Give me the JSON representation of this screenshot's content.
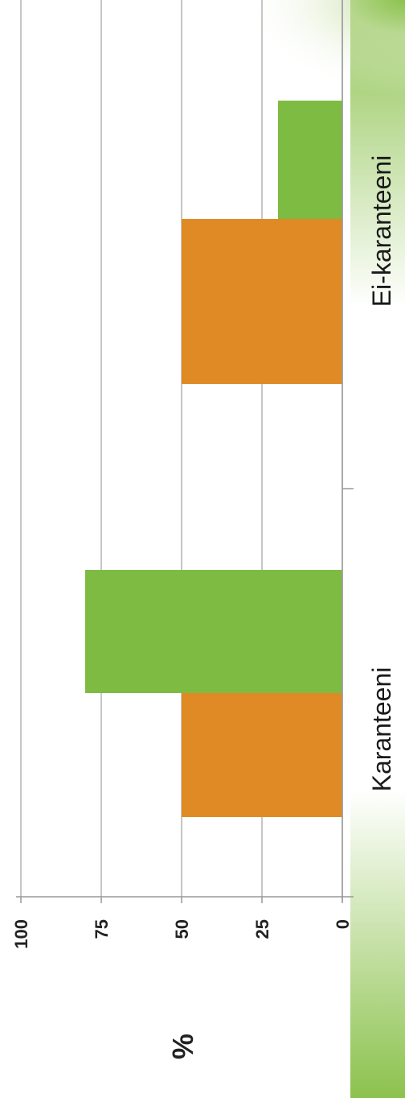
{
  "chart_data": {
    "type": "bar",
    "orientation": "vertical-rotated",
    "categories": [
      "Karanteeni",
      "Ei-karanteeni"
    ],
    "series": [
      {
        "color": "#e08a25",
        "values": [
          50,
          50
        ]
      },
      {
        "color": "#7dbb42",
        "values": [
          80,
          20
        ]
      }
    ],
    "ylabel": "%",
    "ylim": [
      0,
      100
    ],
    "yticks": [
      "0",
      "25",
      "50",
      "75",
      "100"
    ],
    "grid": true
  },
  "colors": {
    "gridline": "#b3b3b3",
    "axis": "#999999",
    "band_dark": "#8cc24e",
    "band_light": "#ffffff"
  }
}
